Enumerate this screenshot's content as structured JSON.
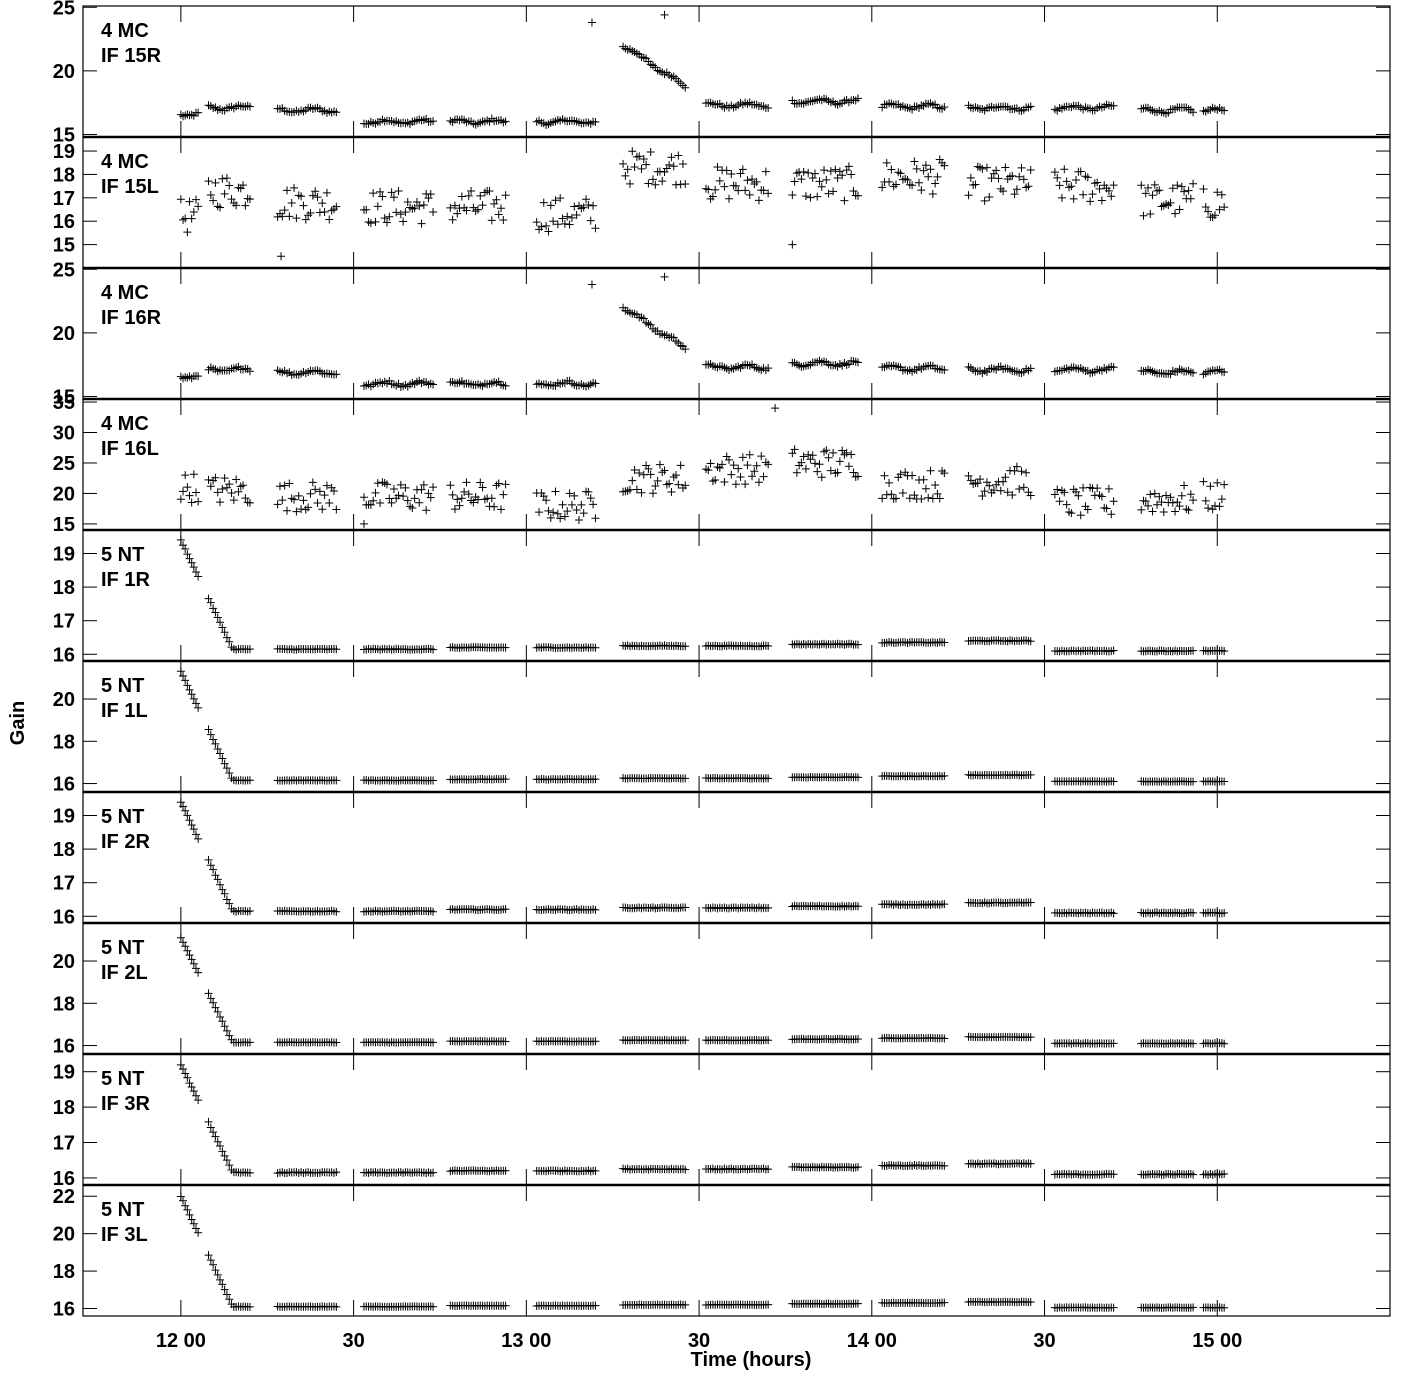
{
  "chart_data": {
    "type": "scatter",
    "title": "",
    "xlabel": "Time (hours)",
    "ylabel": "Gain",
    "x_unit": "hours",
    "xlim": [
      11.7167,
      15.5
    ],
    "x_ticks": [
      {
        "label": "12 00",
        "value": 12.0
      },
      {
        "label": "30",
        "value": 12.5
      },
      {
        "label": "13 00",
        "value": 13.0
      },
      {
        "label": "30",
        "value": 13.5
      },
      {
        "label": "14 00",
        "value": 14.0
      },
      {
        "label": "30",
        "value": 14.5
      },
      {
        "label": "15 00",
        "value": 15.0
      }
    ],
    "marker": "+",
    "color": "#000000",
    "grid": false,
    "scan_windows": [
      [
        12.0,
        12.05
      ],
      [
        12.08,
        12.2
      ],
      [
        12.28,
        12.45
      ],
      [
        12.53,
        12.73
      ],
      [
        12.78,
        12.94
      ],
      [
        13.03,
        13.2
      ],
      [
        13.28,
        13.46
      ],
      [
        13.52,
        13.7
      ],
      [
        13.77,
        13.96
      ],
      [
        14.03,
        14.21
      ],
      [
        14.28,
        14.46
      ],
      [
        14.53,
        14.7
      ],
      [
        14.78,
        14.93
      ],
      [
        14.96,
        15.02
      ]
    ],
    "panels": [
      {
        "label_line1": "4 MC",
        "label_line2": "IF 15R",
        "ylim": [
          14.8,
          25.1
        ],
        "y_ticks": [
          15,
          20,
          25
        ],
        "series": {
          "kind": "smooth",
          "levels": [
            16.6,
            17.1,
            16.9,
            16.0,
            16.0,
            16.0,
            20.4,
            17.3,
            17.6,
            17.2,
            17.1,
            17.1,
            16.9,
            16.9
          ],
          "drift": [
            0,
            0,
            0,
            0,
            0,
            0,
            -3.2,
            0,
            0,
            0,
            0,
            0,
            0,
            0
          ],
          "noise": 0.25,
          "outliers": [
            [
              13.19,
              23.8
            ],
            [
              13.4,
              24.4
            ]
          ]
        }
      },
      {
        "label_line1": "4 MC",
        "label_line2": "IF 15L",
        "ylim": [
          14.0,
          19.6
        ],
        "y_ticks": [
          15,
          16,
          17,
          18,
          19
        ],
        "series": {
          "kind": "scatter",
          "levels": [
            16.2,
            17.3,
            16.8,
            16.6,
            16.6,
            16.3,
            18.3,
            17.6,
            17.6,
            17.9,
            17.6,
            17.5,
            16.9,
            16.8
          ],
          "noise": 0.75,
          "outliers": [
            [
              12.29,
              14.5
            ],
            [
              13.77,
              15.0
            ]
          ]
        }
      },
      {
        "label_line1": "4 MC",
        "label_line2": "IF 16R",
        "ylim": [
          14.8,
          25.1
        ],
        "y_ticks": [
          15,
          20,
          25
        ],
        "series": {
          "kind": "smooth",
          "levels": [
            16.6,
            17.1,
            16.9,
            16.0,
            16.0,
            16.0,
            20.4,
            17.3,
            17.6,
            17.2,
            17.1,
            17.1,
            16.9,
            16.9
          ],
          "drift": [
            0,
            0,
            0,
            0,
            0,
            0,
            -3.2,
            0,
            0,
            0,
            0,
            0,
            0,
            0
          ],
          "noise": 0.25,
          "outliers": [
            [
              13.19,
              23.8
            ],
            [
              13.4,
              24.4
            ]
          ]
        }
      },
      {
        "label_line1": "4 MC",
        "label_line2": "IF 16L",
        "ylim": [
          14.0,
          35.5
        ],
        "y_ticks": [
          15,
          20,
          25,
          30,
          35
        ],
        "series": {
          "kind": "scatter",
          "levels": [
            21.0,
            20.5,
            19.5,
            19.5,
            19.5,
            18.0,
            22.5,
            24.0,
            25.0,
            21.5,
            22.0,
            18.5,
            19.0,
            19.5
          ],
          "noise": 2.5,
          "outliers": [
            [
              12.53,
              15.0
            ],
            [
              13.72,
              34.0
            ]
          ]
        }
      },
      {
        "label_line1": "5 NT",
        "label_line2": "IF 1R",
        "ylim": [
          15.8,
          19.7
        ],
        "y_ticks": [
          16,
          17,
          18,
          19
        ],
        "series": {
          "kind": "ramp",
          "start": 19.4,
          "end": 16.15,
          "ramp_end": 12.15,
          "levels": [
            16.15,
            16.15,
            16.15,
            16.15,
            16.2,
            16.2,
            16.25,
            16.25,
            16.3,
            16.35,
            16.4,
            16.1,
            16.1,
            16.1
          ],
          "noise": 0.03,
          "outliers": []
        }
      },
      {
        "label_line1": "5 NT",
        "label_line2": "IF 1L",
        "ylim": [
          15.6,
          21.8
        ],
        "y_ticks": [
          16,
          18,
          20
        ],
        "series": {
          "kind": "ramp",
          "start": 21.3,
          "end": 16.15,
          "ramp_end": 12.15,
          "levels": [
            16.15,
            16.15,
            16.15,
            16.15,
            16.2,
            16.2,
            16.25,
            16.25,
            16.3,
            16.35,
            16.4,
            16.1,
            16.1,
            16.1
          ],
          "noise": 0.03,
          "outliers": []
        }
      },
      {
        "label_line1": "5 NT",
        "label_line2": "IF 2R",
        "ylim": [
          15.8,
          19.7
        ],
        "y_ticks": [
          16,
          17,
          18,
          19
        ],
        "series": {
          "kind": "ramp",
          "start": 19.4,
          "end": 16.15,
          "ramp_end": 12.15,
          "levels": [
            16.15,
            16.15,
            16.15,
            16.15,
            16.2,
            16.2,
            16.25,
            16.25,
            16.3,
            16.35,
            16.4,
            16.1,
            16.1,
            16.1
          ],
          "noise": 0.03,
          "outliers": []
        }
      },
      {
        "label_line1": "5 NT",
        "label_line2": "IF 2L",
        "ylim": [
          15.6,
          21.8
        ],
        "y_ticks": [
          16,
          18,
          20
        ],
        "series": {
          "kind": "ramp",
          "start": 21.1,
          "end": 16.15,
          "ramp_end": 12.15,
          "levels": [
            16.15,
            16.15,
            16.15,
            16.15,
            16.2,
            16.2,
            16.25,
            16.25,
            16.3,
            16.35,
            16.4,
            16.1,
            16.1,
            16.1
          ],
          "noise": 0.03,
          "outliers": []
        }
      },
      {
        "label_line1": "5 NT",
        "label_line2": "IF 3R",
        "ylim": [
          15.8,
          19.5
        ],
        "y_ticks": [
          16,
          17,
          18,
          19
        ],
        "series": {
          "kind": "ramp",
          "start": 19.2,
          "end": 16.15,
          "ramp_end": 12.15,
          "levels": [
            16.15,
            16.15,
            16.15,
            16.15,
            16.2,
            16.2,
            16.25,
            16.25,
            16.3,
            16.35,
            16.4,
            16.1,
            16.1,
            16.1
          ],
          "noise": 0.03,
          "outliers": []
        }
      },
      {
        "label_line1": "5 NT",
        "label_line2": "IF 3L",
        "ylim": [
          15.6,
          22.6
        ],
        "y_ticks": [
          16,
          18,
          20,
          22
        ],
        "series": {
          "kind": "ramp",
          "start": 22.0,
          "end": 16.1,
          "ramp_end": 12.15,
          "levels": [
            16.1,
            16.1,
            16.1,
            16.1,
            16.15,
            16.15,
            16.2,
            16.2,
            16.25,
            16.3,
            16.35,
            16.05,
            16.05,
            16.05
          ],
          "noise": 0.03,
          "outliers": []
        }
      }
    ]
  }
}
